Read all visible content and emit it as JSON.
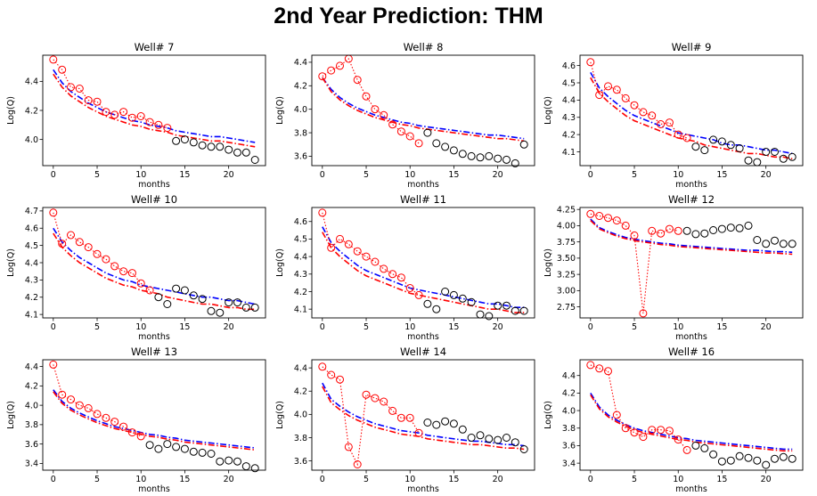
{
  "title": "2nd Year Prediction: THM",
  "colors": {
    "train": "#ff0000",
    "test": "#000000",
    "pred_blue": "#0000ff",
    "pred_red": "#ff0000"
  },
  "chart_data": [
    {
      "type": "scatter",
      "title": "Well# 7",
      "xlabel": "months",
      "ylabel": "Log(Q)",
      "xlim": [
        -1.2,
        24.2
      ],
      "ylim": [
        3.82,
        4.58
      ],
      "xticks": [
        0,
        5,
        10,
        15,
        20
      ],
      "yticks": [
        4.0,
        4.2,
        4.4
      ],
      "ytick_labels": [
        "4.0",
        "4.2",
        "4.4"
      ],
      "train_end": 13,
      "observed": [
        4.55,
        4.48,
        4.36,
        4.35,
        4.27,
        4.26,
        4.19,
        4.17,
        4.19,
        4.15,
        4.16,
        4.12,
        4.1,
        4.08,
        3.99,
        4.0,
        3.98,
        3.96,
        3.95,
        3.95,
        3.93,
        3.91,
        3.91,
        3.86
      ],
      "pred_blue": [
        4.48,
        4.39,
        4.33,
        4.29,
        4.25,
        4.22,
        4.19,
        4.17,
        4.15,
        4.13,
        4.12,
        4.1,
        4.09,
        4.08,
        4.06,
        4.05,
        4.04,
        4.03,
        4.02,
        4.02,
        4.01,
        4.0,
        3.99,
        3.98
      ],
      "pred_red": [
        4.45,
        4.36,
        4.3,
        4.26,
        4.22,
        4.19,
        4.16,
        4.14,
        4.12,
        4.1,
        4.09,
        4.07,
        4.06,
        4.05,
        4.03,
        4.02,
        4.01,
        4.0,
        3.99,
        3.99,
        3.98,
        3.97,
        3.96,
        3.95
      ]
    },
    {
      "type": "scatter",
      "title": "Well# 8",
      "xlabel": "months",
      "ylabel": "Log(Q)",
      "xlim": [
        -1.2,
        24.2
      ],
      "ylim": [
        3.52,
        4.46
      ],
      "xticks": [
        0,
        5,
        10,
        15,
        20
      ],
      "yticks": [
        3.6,
        3.8,
        4.0,
        4.2,
        4.4
      ],
      "ytick_labels": [
        "3.6",
        "3.8",
        "4.0",
        "4.2",
        "4.4"
      ],
      "train_end": 11,
      "observed": [
        4.28,
        4.33,
        4.37,
        4.43,
        4.25,
        4.11,
        4.0,
        3.95,
        3.87,
        3.81,
        3.77,
        3.71,
        3.8,
        3.71,
        3.68,
        3.65,
        3.62,
        3.6,
        3.59,
        3.6,
        3.58,
        3.57,
        3.54,
        3.7
      ],
      "pred_blue": [
        4.27,
        4.17,
        4.1,
        4.05,
        4.01,
        3.98,
        3.95,
        3.93,
        3.91,
        3.89,
        3.88,
        3.86,
        3.85,
        3.84,
        3.83,
        3.82,
        3.81,
        3.8,
        3.79,
        3.78,
        3.78,
        3.77,
        3.76,
        3.75
      ],
      "pred_red": [
        4.27,
        4.15,
        4.08,
        4.03,
        3.99,
        3.96,
        3.93,
        3.91,
        3.89,
        3.87,
        3.86,
        3.84,
        3.83,
        3.82,
        3.81,
        3.8,
        3.79,
        3.78,
        3.77,
        3.76,
        3.75,
        3.75,
        3.74,
        3.73
      ]
    },
    {
      "type": "scatter",
      "title": "Well# 9",
      "xlabel": "months",
      "ylabel": "Log(Q)",
      "xlim": [
        -1.2,
        24.2
      ],
      "ylim": [
        4.02,
        4.66
      ],
      "xticks": [
        0,
        5,
        10,
        15,
        20
      ],
      "yticks": [
        4.1,
        4.2,
        4.3,
        4.4,
        4.5,
        4.6
      ],
      "ytick_labels": [
        "4.1",
        "4.2",
        "4.3",
        "4.4",
        "4.5",
        "4.6"
      ],
      "train_end": 11,
      "observed": [
        4.62,
        4.43,
        4.48,
        4.46,
        4.41,
        4.37,
        4.33,
        4.31,
        4.26,
        4.27,
        4.2,
        4.18,
        4.13,
        4.11,
        4.17,
        4.16,
        4.14,
        4.12,
        4.05,
        4.04,
        4.1,
        4.1,
        4.06,
        4.07
      ],
      "pred_blue": [
        4.56,
        4.47,
        4.42,
        4.38,
        4.34,
        4.31,
        4.29,
        4.27,
        4.25,
        4.23,
        4.21,
        4.2,
        4.19,
        4.18,
        4.17,
        4.15,
        4.14,
        4.14,
        4.13,
        4.12,
        4.11,
        4.11,
        4.1,
        4.09
      ],
      "pred_red": [
        4.53,
        4.44,
        4.39,
        4.35,
        4.31,
        4.28,
        4.26,
        4.24,
        4.22,
        4.2,
        4.18,
        4.17,
        4.16,
        4.14,
        4.13,
        4.12,
        4.11,
        4.1,
        4.09,
        4.09,
        4.08,
        4.07,
        4.07,
        4.06
      ]
    },
    {
      "type": "scatter",
      "title": "Well# 10",
      "xlabel": "months",
      "ylabel": "Log(Q)",
      "xlim": [
        -1.2,
        24.2
      ],
      "ylim": [
        4.08,
        4.72
      ],
      "xticks": [
        0,
        5,
        10,
        15,
        20
      ],
      "yticks": [
        4.1,
        4.2,
        4.3,
        4.4,
        4.5,
        4.6,
        4.7
      ],
      "ytick_labels": [
        "4.1",
        "4.2",
        "4.3",
        "4.4",
        "4.5",
        "4.6",
        "4.7"
      ],
      "train_end": 11,
      "observed": [
        4.69,
        4.51,
        4.56,
        4.52,
        4.49,
        4.45,
        4.42,
        4.38,
        4.35,
        4.34,
        4.28,
        4.24,
        4.2,
        4.16,
        4.25,
        4.24,
        4.21,
        4.19,
        4.12,
        4.11,
        4.17,
        4.17,
        4.14,
        4.14
      ],
      "pred_blue": [
        4.6,
        4.52,
        4.47,
        4.43,
        4.4,
        4.37,
        4.34,
        4.32,
        4.3,
        4.29,
        4.27,
        4.26,
        4.25,
        4.24,
        4.23,
        4.22,
        4.21,
        4.2,
        4.2,
        4.19,
        4.18,
        4.18,
        4.17,
        4.16
      ],
      "pred_red": [
        4.57,
        4.49,
        4.44,
        4.4,
        4.37,
        4.34,
        4.31,
        4.29,
        4.27,
        4.26,
        4.24,
        4.23,
        4.22,
        4.2,
        4.19,
        4.18,
        4.17,
        4.16,
        4.16,
        4.15,
        4.14,
        4.14,
        4.13,
        4.13
      ]
    },
    {
      "type": "scatter",
      "title": "Well# 11",
      "xlabel": "months",
      "ylabel": "Log(Q)",
      "xlim": [
        -1.2,
        24.2
      ],
      "ylim": [
        4.05,
        4.68
      ],
      "xticks": [
        0,
        5,
        10,
        15,
        20
      ],
      "yticks": [
        4.1,
        4.2,
        4.3,
        4.4,
        4.5,
        4.6
      ],
      "ytick_labels": [
        "4.1",
        "4.2",
        "4.3",
        "4.4",
        "4.5",
        "4.6"
      ],
      "train_end": 11,
      "observed": [
        4.65,
        4.45,
        4.5,
        4.47,
        4.43,
        4.4,
        4.37,
        4.33,
        4.3,
        4.28,
        4.22,
        4.18,
        4.13,
        4.1,
        4.2,
        4.18,
        4.16,
        4.14,
        4.07,
        4.06,
        4.12,
        4.12,
        4.09,
        4.09
      ],
      "pred_blue": [
        4.57,
        4.48,
        4.43,
        4.39,
        4.35,
        4.32,
        4.3,
        4.28,
        4.26,
        4.24,
        4.22,
        4.21,
        4.2,
        4.19,
        4.18,
        4.17,
        4.16,
        4.15,
        4.14,
        4.13,
        4.13,
        4.12,
        4.11,
        4.11
      ],
      "pred_red": [
        4.54,
        4.45,
        4.4,
        4.36,
        4.32,
        4.29,
        4.27,
        4.25,
        4.23,
        4.21,
        4.19,
        4.18,
        4.17,
        4.16,
        4.15,
        4.14,
        4.13,
        4.12,
        4.11,
        4.1,
        4.1,
        4.09,
        4.08,
        4.08
      ]
    },
    {
      "type": "scatter",
      "title": "Well# 12",
      "xlabel": "months",
      "ylabel": "Log(Q)",
      "xlim": [
        -1.2,
        24.2
      ],
      "ylim": [
        2.58,
        4.28
      ],
      "xticks": [
        0,
        5,
        10,
        15,
        20
      ],
      "yticks": [
        2.75,
        3.0,
        3.25,
        3.5,
        3.75,
        4.0,
        4.25
      ],
      "ytick_labels": [
        "2.75",
        "3.00",
        "3.25",
        "3.50",
        "3.75",
        "4.00",
        "4.25"
      ],
      "train_end": 10,
      "observed": [
        4.18,
        4.15,
        4.12,
        4.08,
        4.0,
        3.85,
        2.65,
        3.92,
        3.88,
        3.95,
        3.92,
        3.92,
        3.87,
        3.88,
        3.93,
        3.95,
        3.97,
        3.96,
        4.0,
        3.78,
        3.72,
        3.77,
        3.72,
        3.72
      ],
      "pred_blue": [
        4.1,
        3.97,
        3.91,
        3.86,
        3.82,
        3.79,
        3.77,
        3.75,
        3.73,
        3.72,
        3.7,
        3.69,
        3.68,
        3.67,
        3.66,
        3.65,
        3.64,
        3.63,
        3.62,
        3.62,
        3.61,
        3.6,
        3.6,
        3.59
      ],
      "pred_red": [
        4.08,
        3.95,
        3.89,
        3.84,
        3.8,
        3.77,
        3.75,
        3.73,
        3.71,
        3.7,
        3.68,
        3.67,
        3.66,
        3.65,
        3.64,
        3.63,
        3.62,
        3.61,
        3.6,
        3.59,
        3.58,
        3.58,
        3.57,
        3.56
      ]
    },
    {
      "type": "scatter",
      "title": "Well# 13",
      "xlabel": "months",
      "ylabel": "Log(Q)",
      "xlim": [
        -1.2,
        24.2
      ],
      "ylim": [
        3.33,
        4.47
      ],
      "xticks": [
        0,
        5,
        10,
        15,
        20
      ],
      "yticks": [
        3.4,
        3.6,
        3.8,
        4.0,
        4.2,
        4.4
      ],
      "ytick_labels": [
        "3.4",
        "3.6",
        "3.8",
        "4.0",
        "4.2",
        "4.4"
      ],
      "train_end": 10,
      "observed": [
        4.42,
        4.11,
        4.06,
        4.0,
        3.97,
        3.91,
        3.87,
        3.83,
        3.78,
        3.72,
        3.68,
        3.59,
        3.55,
        3.6,
        3.57,
        3.55,
        3.52,
        3.51,
        3.5,
        3.42,
        3.43,
        3.42,
        3.37,
        3.35
      ],
      "pred_blue": [
        4.16,
        4.04,
        3.97,
        3.92,
        3.88,
        3.84,
        3.81,
        3.78,
        3.76,
        3.74,
        3.72,
        3.7,
        3.69,
        3.67,
        3.66,
        3.64,
        3.63,
        3.62,
        3.61,
        3.6,
        3.59,
        3.58,
        3.57,
        3.56
      ],
      "pred_red": [
        4.14,
        4.02,
        3.95,
        3.9,
        3.86,
        3.82,
        3.79,
        3.76,
        3.74,
        3.72,
        3.7,
        3.68,
        3.67,
        3.65,
        3.64,
        3.62,
        3.61,
        3.6,
        3.59,
        3.58,
        3.57,
        3.56,
        3.55,
        3.54
      ]
    },
    {
      "type": "scatter",
      "title": "Well# 14",
      "xlabel": "months",
      "ylabel": "Log(Q)",
      "xlim": [
        -1.2,
        24.2
      ],
      "ylim": [
        3.52,
        4.47
      ],
      "xticks": [
        0,
        5,
        10,
        15,
        20
      ],
      "yticks": [
        3.6,
        3.8,
        4.0,
        4.2,
        4.4
      ],
      "ytick_labels": [
        "3.6",
        "3.8",
        "4.0",
        "4.2",
        "4.4"
      ],
      "train_end": 11,
      "observed": [
        4.41,
        4.34,
        4.3,
        3.72,
        3.57,
        4.17,
        4.14,
        4.11,
        4.03,
        3.97,
        3.97,
        3.84,
        3.93,
        3.91,
        3.94,
        3.92,
        3.87,
        3.8,
        3.82,
        3.79,
        3.78,
        3.8,
        3.76,
        3.7
      ],
      "pred_blue": [
        4.27,
        4.13,
        4.07,
        4.02,
        3.98,
        3.95,
        3.92,
        3.9,
        3.88,
        3.86,
        3.85,
        3.84,
        3.82,
        3.81,
        3.8,
        3.79,
        3.78,
        3.77,
        3.77,
        3.76,
        3.75,
        3.74,
        3.74,
        3.73
      ],
      "pred_red": [
        4.24,
        4.1,
        4.04,
        3.99,
        3.95,
        3.92,
        3.89,
        3.87,
        3.85,
        3.83,
        3.82,
        3.81,
        3.79,
        3.78,
        3.77,
        3.76,
        3.75,
        3.74,
        3.74,
        3.73,
        3.72,
        3.71,
        3.71,
        3.7
      ]
    },
    {
      "type": "scatter",
      "title": "Well# 16",
      "xlabel": "months",
      "ylabel": "Log(Q)",
      "xlim": [
        -1.2,
        24.2
      ],
      "ylim": [
        3.32,
        4.58
      ],
      "xticks": [
        0,
        5,
        10,
        15,
        20
      ],
      "yticks": [
        3.4,
        3.6,
        3.8,
        4.0,
        4.2,
        4.4
      ],
      "ytick_labels": [
        "3.4",
        "3.6",
        "3.8",
        "4.0",
        "4.2",
        "4.4"
      ],
      "train_end": 11,
      "observed": [
        4.52,
        4.48,
        4.45,
        3.95,
        3.8,
        3.75,
        3.7,
        3.78,
        3.78,
        3.77,
        3.67,
        3.55,
        3.6,
        3.57,
        3.5,
        3.42,
        3.43,
        3.48,
        3.46,
        3.43,
        3.38,
        3.45,
        3.47,
        3.45
      ],
      "pred_blue": [
        4.2,
        4.04,
        3.95,
        3.89,
        3.84,
        3.8,
        3.77,
        3.75,
        3.73,
        3.71,
        3.69,
        3.68,
        3.66,
        3.65,
        3.64,
        3.63,
        3.62,
        3.61,
        3.6,
        3.59,
        3.58,
        3.57,
        3.56,
        3.56
      ],
      "pred_red": [
        4.18,
        4.02,
        3.93,
        3.87,
        3.82,
        3.78,
        3.75,
        3.73,
        3.71,
        3.69,
        3.67,
        3.66,
        3.64,
        3.63,
        3.62,
        3.61,
        3.6,
        3.59,
        3.58,
        3.57,
        3.56,
        3.55,
        3.54,
        3.54
      ]
    }
  ]
}
